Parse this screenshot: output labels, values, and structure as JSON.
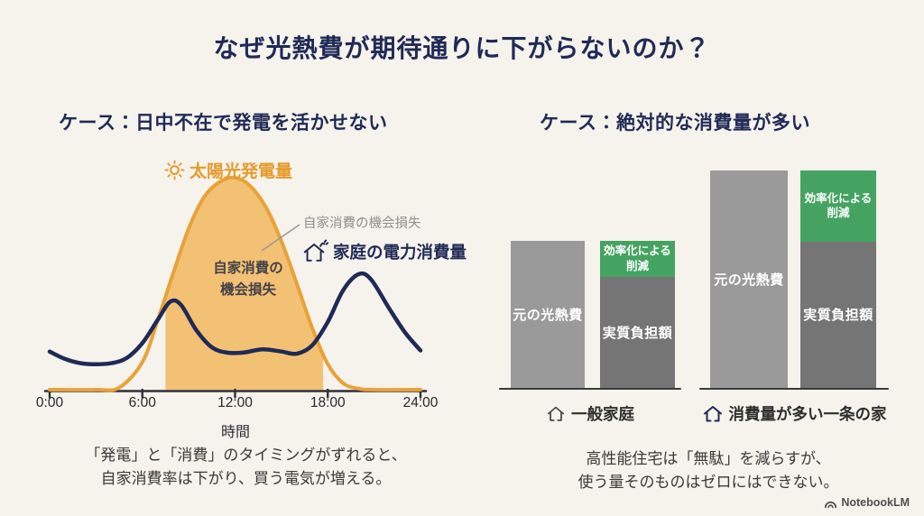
{
  "title": "なぜ光熱費が期待通りに下がらないのか？",
  "left": {
    "heading": "ケース：日中不在で発電を活かせない",
    "legend_solar": "太陽光発電量",
    "annotation_loss": "自家消費の機会損失",
    "legend_consumption": "家庭の電力消費量",
    "area_label_line1": "自家消費の",
    "area_label_line2": "機会損失",
    "x_ticks": [
      "0:00",
      "6:00",
      "12:00",
      "18:00",
      "24:00"
    ],
    "x_label": "時間",
    "caption_line1": "「発電」と「消費」のタイミングがずれると、",
    "caption_line2": "自家消費率は下がり、買う電気が増える。"
  },
  "right": {
    "heading": "ケース：絶対的な消費量が多い",
    "groups": [
      {
        "label": "一般家庭",
        "original_label": "元の光熱費",
        "reduction_label_line1": "効率化による",
        "reduction_label_line2": "削減",
        "net_label": "実質負担額"
      },
      {
        "label": "消費量が多い一条の家",
        "original_label": "元の光熱費",
        "reduction_label_line1": "効率化による",
        "reduction_label_line2": "削減",
        "net_label": "実質負担額"
      }
    ],
    "caption_line1": "高性能住宅は「無駄」を減らすが、",
    "caption_line2": "使う量そのものはゼロにはできない。"
  },
  "footer": {
    "brand": "NotebookLM"
  },
  "colors": {
    "background": "#F6F3EC",
    "navy": "#1F2A56",
    "orange": "#E8A238",
    "orange_fill": "#F3C173",
    "green": "#45A362",
    "bar_gray": "#9A9A9A",
    "bar_dark_gray": "#757575",
    "axis_dark": "#2F3038",
    "text_dark": "#3A3A3A",
    "annotation_gray": "#8F8F8F"
  },
  "chart_data": [
    {
      "type": "area",
      "title": "ケース：日中不在で発電を活かせない",
      "xlabel": "時間",
      "ylabel": "",
      "x_ticks": [
        "0:00",
        "6:00",
        "12:00",
        "18:00",
        "24:00"
      ],
      "x_tick_hours": [
        0,
        6,
        12,
        18,
        24
      ],
      "x_range_hours": [
        0,
        24
      ],
      "y_unit": "relative output (solar peak = 1.0)",
      "grid": false,
      "legend_position": "around plot",
      "series": [
        {
          "name": "太陽光発電量",
          "color": "#E8A238",
          "points": [
            [
              0,
              0
            ],
            [
              3,
              0
            ],
            [
              4.5,
              0.01
            ],
            [
              6,
              0.13
            ],
            [
              7,
              0.33
            ],
            [
              8,
              0.55
            ],
            [
              9,
              0.76
            ],
            [
              10,
              0.91
            ],
            [
              11,
              0.98
            ],
            [
              12,
              1.0
            ],
            [
              13,
              0.96
            ],
            [
              14,
              0.86
            ],
            [
              15,
              0.7
            ],
            [
              16,
              0.5
            ],
            [
              17,
              0.29
            ],
            [
              18,
              0.12
            ],
            [
              19,
              0.03
            ],
            [
              20,
              0.005
            ],
            [
              21,
              0
            ],
            [
              24,
              0
            ]
          ]
        },
        {
          "name": "家庭の電力消費量",
          "color": "#1F2A56",
          "points": [
            [
              0,
              0.18
            ],
            [
              1,
              0.145
            ],
            [
              2,
              0.125
            ],
            [
              3,
              0.12
            ],
            [
              4,
              0.125
            ],
            [
              5,
              0.15
            ],
            [
              6,
              0.22
            ],
            [
              7,
              0.33
            ],
            [
              7.8,
              0.415
            ],
            [
              8.5,
              0.4
            ],
            [
              9.5,
              0.28
            ],
            [
              10.5,
              0.2
            ],
            [
              11.5,
              0.175
            ],
            [
              12.5,
              0.175
            ],
            [
              13.8,
              0.19
            ],
            [
              15,
              0.18
            ],
            [
              16,
              0.17
            ],
            [
              17,
              0.21
            ],
            [
              18,
              0.32
            ],
            [
              19,
              0.47
            ],
            [
              20,
              0.545
            ],
            [
              20.8,
              0.52
            ],
            [
              22,
              0.38
            ],
            [
              23,
              0.27
            ],
            [
              24,
              0.185
            ]
          ]
        }
      ],
      "shaded_region": {
        "label": "自家消費の機会損失",
        "from_hour": 7.5,
        "to_hour": 17.7,
        "fill": "#F3C173"
      }
    },
    {
      "type": "bar",
      "title": "ケース：絶対的な消費量が多い",
      "unit": "relative cost (一般家庭の元の光熱費 = 1.0)",
      "groups": [
        {
          "category": "一般家庭",
          "bars": [
            {
              "label": "元の光熱費",
              "value": 1.0
            },
            {
              "label": "実質負担額",
              "value": 0.755,
              "stacked_reduction": {
                "label": "効率化による削減",
                "value": 0.245
              }
            }
          ]
        },
        {
          "category": "消費量が多い一条の家",
          "bars": [
            {
              "label": "元の光熱費",
              "value": 1.48
            },
            {
              "label": "実質負担額",
              "value": 0.995,
              "stacked_reduction": {
                "label": "効率化による削減",
                "value": 0.485
              }
            }
          ]
        }
      ]
    }
  ]
}
